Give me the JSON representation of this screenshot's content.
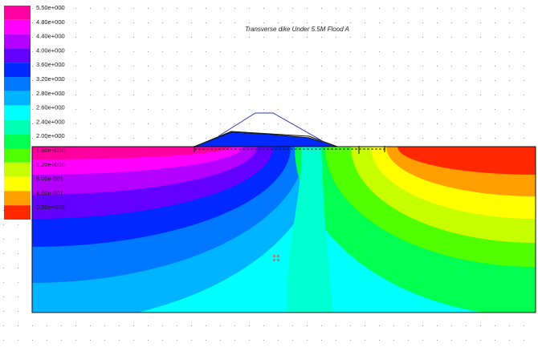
{
  "chart_data": {
    "type": "heatmap",
    "title": "Transverse dike  Under 5.5M Flood A",
    "legend": {
      "placement": "left",
      "entries": [
        {
          "label": "5.50e+000",
          "color": "#ff00a0"
        },
        {
          "label": "4.80e+000",
          "color": "#ff00ff"
        },
        {
          "label": "4.40e+000",
          "color": "#b400ff"
        },
        {
          "label": "4.00e+000",
          "color": "#6400ff"
        },
        {
          "label": "3.60e+000",
          "color": "#0028ff"
        },
        {
          "label": "3.20e+000",
          "color": "#0078ff"
        },
        {
          "label": "2.80e+000",
          "color": "#00b4ff"
        },
        {
          "label": "2.60e+000",
          "color": "#00ffff"
        },
        {
          "label": "2.40e+000",
          "color": "#00ffb4"
        },
        {
          "label": "2.00e+000",
          "color": "#00ff50"
        },
        {
          "label": "1.60e+000",
          "color": "#50ff00"
        },
        {
          "label": "1.20e+000",
          "color": "#c8ff00"
        },
        {
          "label": "8.00e-001",
          "color": "#ffff00"
        },
        {
          "label": "4.00e-001",
          "color": "#ffa000"
        },
        {
          "label": "0.00e+000",
          "color": "#ff2800"
        }
      ]
    },
    "grid": true
  }
}
